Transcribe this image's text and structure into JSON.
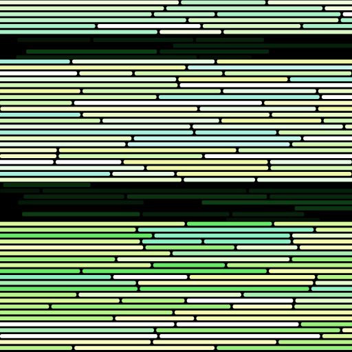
{
  "palette": {
    "background": "#000000",
    "outline": "#000000",
    "top_band": [
      "#ffffff",
      "#f2fde0",
      "#d9f7c4",
      "#bff2c9",
      "#a8f0c8"
    ],
    "mid_band": [
      "#ffffff",
      "#e6fbe1",
      "#c8f5ec",
      "#a9f0dc",
      "#e8fbc8",
      "#d2f6b4",
      "#f6f9c8",
      "#eef8a8"
    ],
    "bottom_band": [
      "#b8f38a",
      "#d9f79c",
      "#f4fbb0",
      "#ffffff",
      "#c8f4a0",
      "#a9eeb4",
      "#8ef0c4",
      "#e6fbd0",
      "#f8fcc0",
      "#98ef7c",
      "#68e868"
    ],
    "dark_band": [
      "#0a2a0f",
      "#0d3a14",
      "#104a18",
      "#083010"
    ]
  },
  "stripes": [
    {
      "rows": 6,
      "band": "top_band"
    },
    {
      "rows": 0,
      "band": "dark"
    },
    {
      "rows": 17,
      "band": "mid_band"
    },
    {
      "rows": 0,
      "band": "dark"
    },
    {
      "rows": 19,
      "band": "bottom_band"
    }
  ]
}
